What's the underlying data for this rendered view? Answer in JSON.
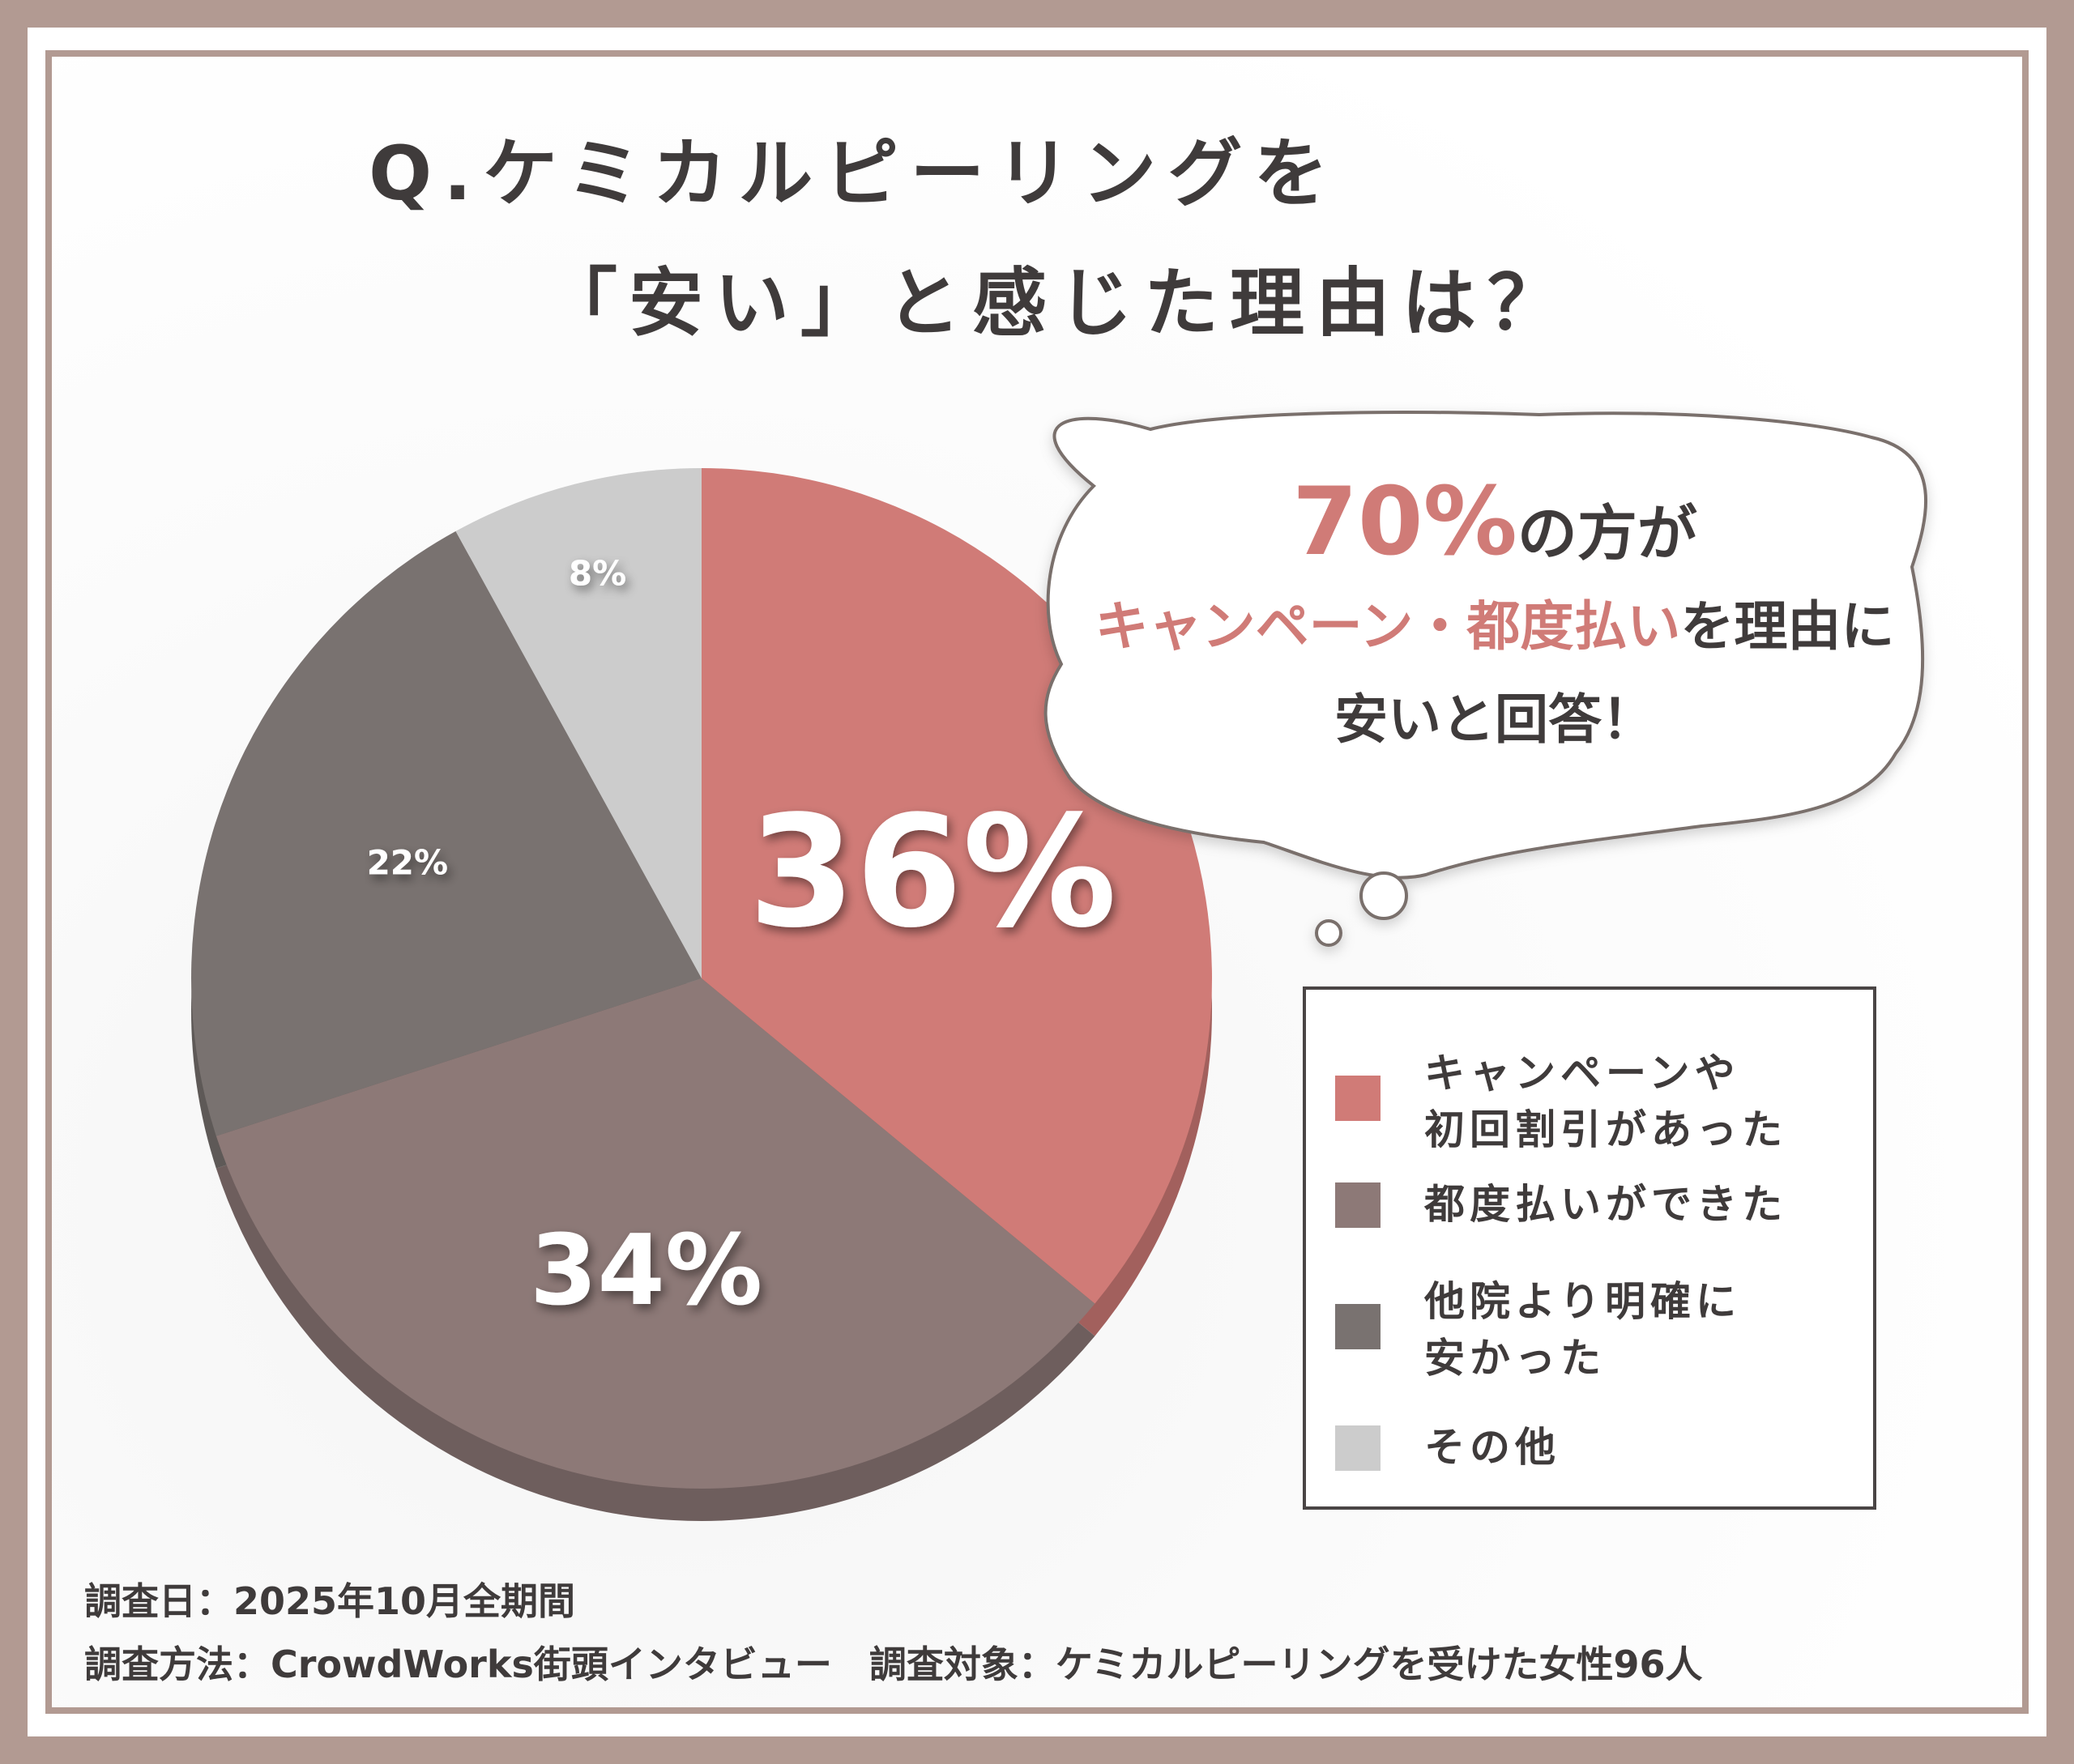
{
  "title": {
    "line1": "Q.ケミカルピーリングを",
    "line2": "「安い」と感じた理由は？"
  },
  "callout": {
    "percent": "70%",
    "line1_rest": "の方が",
    "accent": "キャンペーン・都度払い",
    "line2_rest": "を理由に",
    "line3": "安いと回答！"
  },
  "chart_data": {
    "type": "pie",
    "slices": [
      {
        "label": "キャンペーンや\n初回割引があった",
        "value": 36,
        "display": "36%",
        "color": "#d07b77"
      },
      {
        "label": "都度払いができた",
        "value": 34,
        "display": "34%",
        "color": "#8d7977"
      },
      {
        "label": "他院より明確に\n安かった",
        "value": 22,
        "display": "22%",
        "color": "#797270"
      },
      {
        "label": "その他",
        "value": 8,
        "display": "8%",
        "color": "#cccccc"
      }
    ],
    "start_angle": "12 o'clock",
    "direction": "clockwise",
    "legend_position": "right"
  },
  "footer": {
    "date": "調査日：2025年10月全期間",
    "method": "調査方法：CrowdWorks街頭インタビュー　調査対象：ケミカルピーリングを受けた女性96人"
  },
  "colors": {
    "frame": "#b29a92",
    "text": "#3f3b3b",
    "accent": "#d07b77"
  }
}
